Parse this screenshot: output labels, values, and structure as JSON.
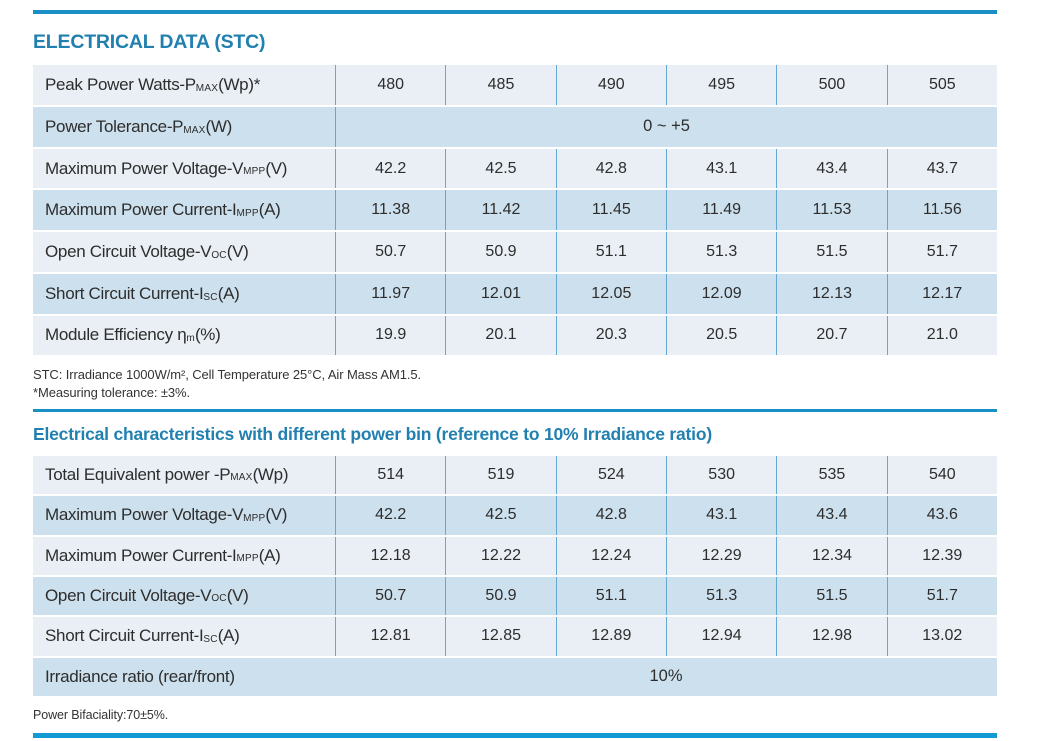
{
  "colors": {
    "accent_rule": "#1a8fc6",
    "accent_rule_bottom": "#129bd2",
    "title_blue": "#2180b0",
    "row_light": "#e9eff5",
    "row_dark": "#cde0ed",
    "divider_blue": "#63a9d2",
    "text_dark": "#2d2d2d"
  },
  "sections": [
    {
      "title": "ELECTRICAL DATA (STC)",
      "rows": [
        {
          "label_pre": "Peak Power Watts-P",
          "label_sub": "MAX",
          "label_post": " (Wp)*",
          "values": [
            "480",
            "485",
            "490",
            "495",
            "500",
            "505"
          ]
        },
        {
          "label_pre": "Power Tolerance-P",
          "label_sub": "MAX",
          "label_post": " (W)",
          "span": "0 ~ +5"
        },
        {
          "label_pre": "Maximum Power Voltage-V",
          "label_sub": "MPP",
          "label_post": " (V)",
          "values": [
            "42.2",
            "42.5",
            "42.8",
            "43.1",
            "43.4",
            "43.7"
          ]
        },
        {
          "label_pre": "Maximum Power Current-I",
          "label_sub": "MPP",
          "label_post": " (A)",
          "values": [
            "11.38",
            "11.42",
            "11.45",
            "11.49",
            "11.53",
            "11.56"
          ]
        },
        {
          "label_pre": "Open Circuit Voltage-V",
          "label_sub": "OC",
          "label_post": " (V)",
          "values": [
            "50.7",
            "50.9",
            "51.1",
            "51.3",
            "51.5",
            "51.7"
          ]
        },
        {
          "label_pre": "Short Circuit Current-I",
          "label_sub": "SC",
          "label_post": " (A)",
          "values": [
            "11.97",
            "12.01",
            "12.05",
            "12.09",
            "12.13",
            "12.17"
          ]
        },
        {
          "label_pre": "Module Efficiency η ",
          "label_sub": "m",
          "label_post": " (%)",
          "values": [
            "19.9",
            "20.1",
            "20.3",
            "20.5",
            "20.7",
            "21.0"
          ]
        }
      ],
      "footnotes": [
        "STC: Irradiance 1000W/m², Cell Temperature 25°C, Air Mass AM1.5.",
        "*Measuring tolerance: ±3%."
      ]
    },
    {
      "title": "Electrical characteristics with different power bin (reference to 10% Irradiance ratio)",
      "rows": [
        {
          "label_pre": "Total Equivalent power -P",
          "label_sub": "MAX",
          "label_post": " (Wp)",
          "values": [
            "514",
            "519",
            "524",
            "530",
            "535",
            "540"
          ]
        },
        {
          "label_pre": "Maximum Power Voltage-V",
          "label_sub": "MPP",
          "label_post": " (V)",
          "values": [
            "42.2",
            "42.5",
            "42.8",
            "43.1",
            "43.4",
            "43.6"
          ]
        },
        {
          "label_pre": "Maximum Power Current-I",
          "label_sub": "MPP",
          "label_post": " (A)",
          "values": [
            "12.18",
            "12.22",
            "12.24",
            "12.29",
            "12.34",
            "12.39"
          ]
        },
        {
          "label_pre": "Open Circuit Voltage-V",
          "label_sub": "OC",
          "label_post": " (V)",
          "values": [
            "50.7",
            "50.9",
            "51.1",
            "51.3",
            "51.5",
            "51.7"
          ]
        },
        {
          "label_pre": "Short Circuit Current-I",
          "label_sub": "SC",
          "label_post": " (A)",
          "values": [
            "12.81",
            "12.85",
            "12.89",
            "12.94",
            "12.98",
            "13.02"
          ]
        },
        {
          "label_pre": "Irradiance ratio (rear/front)",
          "label_sub": "",
          "label_post": "",
          "span": "10%"
        }
      ],
      "footnotes": [
        "Power Bifaciality:70±5%."
      ]
    }
  ]
}
